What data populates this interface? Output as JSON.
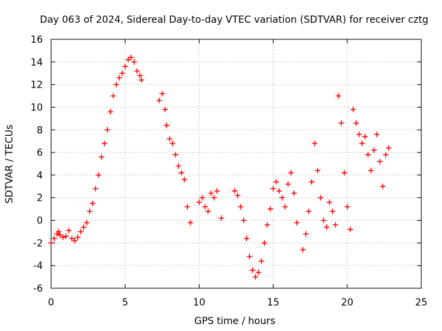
{
  "chart_data": {
    "type": "scatter",
    "title": "Day 063 of 2024, Sidereal Day-to-day VTEC variation (SDTVAR) for receiver cztg",
    "xlabel": "GPS time / hours",
    "ylabel": "SDTVAR / TECUs",
    "xlim": [
      0,
      25
    ],
    "ylim": [
      -6,
      16
    ],
    "xticks": [
      0,
      5,
      10,
      15,
      20,
      25
    ],
    "yticks": [
      -6,
      -4,
      -2,
      0,
      2,
      4,
      6,
      8,
      10,
      12,
      14,
      16
    ],
    "grid": true,
    "marker": "plus",
    "color": "#ff0000",
    "series": [
      {
        "name": "SDTVAR",
        "x": [
          0.0,
          0.2,
          0.4,
          0.5,
          0.6,
          0.8,
          1.0,
          1.2,
          1.4,
          1.6,
          1.8,
          2.0,
          2.2,
          2.4,
          2.6,
          2.8,
          3.0,
          3.2,
          3.4,
          3.6,
          3.8,
          4.0,
          4.2,
          4.4,
          4.6,
          4.8,
          5.0,
          5.2,
          5.4,
          5.6,
          5.8,
          6.0,
          6.1,
          7.3,
          7.5,
          7.7,
          7.8,
          8.0,
          8.2,
          8.4,
          8.6,
          8.8,
          9.0,
          9.2,
          9.4,
          10.0,
          10.2,
          10.4,
          10.6,
          10.8,
          11.0,
          11.2,
          11.5,
          12.4,
          12.6,
          12.8,
          13.0,
          13.2,
          13.4,
          13.6,
          13.8,
          14.0,
          14.2,
          14.4,
          14.6,
          14.8,
          15.0,
          15.2,
          15.4,
          15.6,
          15.8,
          16.0,
          16.2,
          16.4,
          16.6,
          17.0,
          17.2,
          17.4,
          17.6,
          17.8,
          18.0,
          18.2,
          18.4,
          18.6,
          18.8,
          19.0,
          19.2,
          19.4,
          19.6,
          19.8,
          20.0,
          20.2,
          20.4,
          20.6,
          20.8,
          21.0,
          21.2,
          21.4,
          21.6,
          21.8,
          22.0,
          22.2,
          22.4,
          22.6,
          22.8
        ],
        "y": [
          -2.0,
          -1.6,
          -1.2,
          -1.0,
          -1.3,
          -1.5,
          -1.4,
          -0.9,
          -1.6,
          -1.8,
          -1.5,
          -1.0,
          -0.6,
          -0.2,
          0.8,
          1.5,
          2.8,
          4.0,
          5.6,
          6.8,
          8.0,
          9.6,
          11.0,
          12.0,
          12.6,
          13.0,
          13.6,
          14.2,
          14.4,
          14.0,
          13.2,
          12.8,
          12.4,
          10.6,
          11.2,
          9.8,
          8.4,
          7.2,
          6.8,
          5.8,
          4.8,
          4.2,
          3.6,
          1.2,
          -0.2,
          1.6,
          2.0,
          1.2,
          0.8,
          2.4,
          2.0,
          2.6,
          0.2,
          2.6,
          2.2,
          1.2,
          0.0,
          -1.6,
          -3.2,
          -4.4,
          -5.0,
          -4.6,
          -3.6,
          -2.0,
          -0.4,
          1.0,
          2.8,
          3.4,
          2.6,
          2.0,
          1.2,
          3.2,
          4.2,
          2.4,
          -0.2,
          -2.6,
          -1.2,
          0.8,
          3.4,
          6.8,
          4.4,
          2.0,
          0.0,
          -0.6,
          1.6,
          0.8,
          -0.4,
          11.0,
          8.6,
          4.2,
          1.2,
          -0.8,
          9.8,
          8.6,
          7.6,
          6.8,
          7.4,
          5.8,
          4.4,
          6.2,
          7.6,
          5.2,
          3.0,
          5.8,
          6.4
        ]
      }
    ]
  }
}
